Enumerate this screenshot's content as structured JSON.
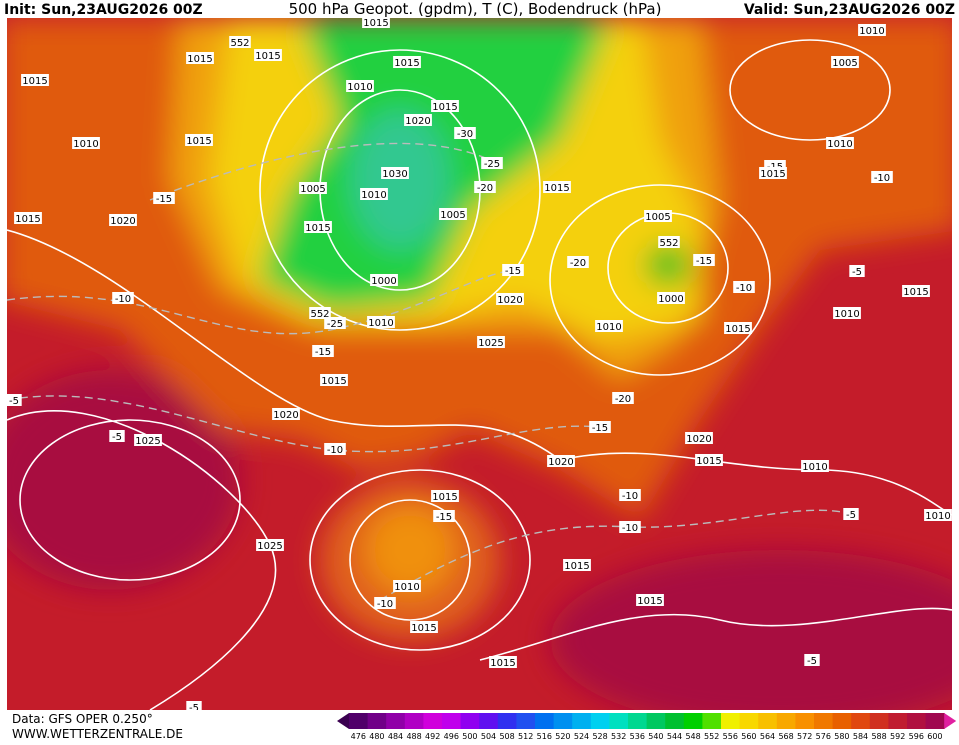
{
  "header": {
    "init": "Init: Sun,23AUG2026 00Z",
    "title": "500 hPa Geopot. (gpdm), T (C), Bodendruck (hPa)",
    "valid": "Valid: Sun,23AUG2026 00Z"
  },
  "footer": {
    "data": "Data: GFS OPER 0.250°",
    "site": "WWW.WETTERZENTRALE.DE"
  },
  "colorbar": {
    "labels": [
      "476",
      "480",
      "484",
      "488",
      "492",
      "496",
      "500",
      "504",
      "508",
      "512",
      "516",
      "520",
      "524",
      "528",
      "532",
      "536",
      "540",
      "544",
      "548",
      "552",
      "556",
      "560",
      "564",
      "568",
      "572",
      "576",
      "580",
      "584",
      "588",
      "592",
      "596",
      "600"
    ]
  },
  "map": {
    "labels": [
      "1010",
      "1005",
      "1015",
      "1015",
      "1015",
      "1015",
      "1015",
      "552",
      "1010",
      "1015",
      "1020",
      "-30",
      "-25",
      "1030",
      "-20",
      "1010",
      "1015",
      "1010",
      "-15",
      "1015",
      "-10",
      "1005",
      "1010",
      "1015",
      "1015",
      "1020",
      "-15",
      "1015",
      "1005",
      "1005",
      "552",
      "-15",
      "-20",
      "-15",
      "-5",
      "1000",
      "-10",
      "1015",
      "-10",
      "1020",
      "552",
      "-25",
      "1010",
      "1000",
      "1010",
      "1010",
      "1015",
      "-15",
      "1025",
      "1015",
      "-5",
      "-20",
      "1020",
      "-15",
      "-5",
      "1025",
      "1020",
      "-10",
      "1020",
      "1015",
      "1010",
      "1015",
      "-10",
      "-15",
      "-10",
      "-5",
      "1010",
      "1025",
      "1015",
      "1010",
      "-10",
      "1015",
      "1015",
      "-5",
      "1015",
      "-5"
    ]
  }
}
